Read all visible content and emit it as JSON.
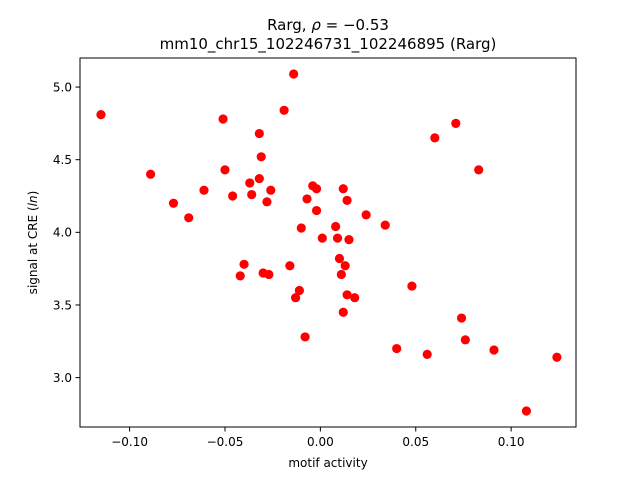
{
  "chart_data": {
    "type": "scatter",
    "title_line1_prefix": "Rarg, ",
    "title_line1_rho_symbol": "ρ",
    "title_line1_rho_value": " = −0.53",
    "title_line2": "mm10_chr15_102246731_102246895 (Rarg)",
    "xlabel": "motif activity",
    "ylabel_prefix": "signal at CRE (",
    "ylabel_italic": "ln",
    "ylabel_suffix": ")",
    "xlim": [
      -0.126,
      0.134
    ],
    "ylim": [
      2.66,
      5.2
    ],
    "x_ticks": [
      -0.1,
      -0.05,
      0.0,
      0.05,
      0.1
    ],
    "x_tick_labels": [
      "−0.10",
      "−0.05",
      "0.00",
      "0.05",
      "0.10"
    ],
    "y_ticks": [
      3.0,
      3.5,
      4.0,
      4.5,
      5.0
    ],
    "y_tick_labels": [
      "3.0",
      "3.5",
      "4.0",
      "4.5",
      "5.0"
    ],
    "marker_color": "#ff0000",
    "grid": false,
    "points": [
      {
        "x": -0.115,
        "y": 4.81
      },
      {
        "x": -0.089,
        "y": 4.4
      },
      {
        "x": -0.077,
        "y": 4.2
      },
      {
        "x": -0.069,
        "y": 4.1
      },
      {
        "x": -0.061,
        "y": 4.29
      },
      {
        "x": -0.051,
        "y": 4.78
      },
      {
        "x": -0.05,
        "y": 4.43
      },
      {
        "x": -0.046,
        "y": 4.25
      },
      {
        "x": -0.042,
        "y": 3.7
      },
      {
        "x": -0.04,
        "y": 3.78
      },
      {
        "x": -0.037,
        "y": 4.34
      },
      {
        "x": -0.036,
        "y": 4.26
      },
      {
        "x": -0.032,
        "y": 4.68
      },
      {
        "x": -0.032,
        "y": 4.37
      },
      {
        "x": -0.031,
        "y": 4.52
      },
      {
        "x": -0.03,
        "y": 3.72
      },
      {
        "x": -0.028,
        "y": 4.21
      },
      {
        "x": -0.027,
        "y": 3.71
      },
      {
        "x": -0.026,
        "y": 4.29
      },
      {
        "x": -0.019,
        "y": 4.84
      },
      {
        "x": -0.016,
        "y": 3.77
      },
      {
        "x": -0.014,
        "y": 5.09
      },
      {
        "x": -0.013,
        "y": 3.55
      },
      {
        "x": -0.011,
        "y": 3.6
      },
      {
        "x": -0.01,
        "y": 4.03
      },
      {
        "x": -0.008,
        "y": 3.28
      },
      {
        "x": -0.007,
        "y": 4.23
      },
      {
        "x": -0.004,
        "y": 4.32
      },
      {
        "x": -0.002,
        "y": 4.3
      },
      {
        "x": -0.002,
        "y": 4.15
      },
      {
        "x": 0.001,
        "y": 3.96
      },
      {
        "x": 0.008,
        "y": 4.04
      },
      {
        "x": 0.009,
        "y": 3.96
      },
      {
        "x": 0.01,
        "y": 3.82
      },
      {
        "x": 0.011,
        "y": 3.71
      },
      {
        "x": 0.012,
        "y": 4.3
      },
      {
        "x": 0.012,
        "y": 3.45
      },
      {
        "x": 0.013,
        "y": 3.77
      },
      {
        "x": 0.014,
        "y": 4.22
      },
      {
        "x": 0.014,
        "y": 3.57
      },
      {
        "x": 0.015,
        "y": 3.95
      },
      {
        "x": 0.018,
        "y": 3.55
      },
      {
        "x": 0.024,
        "y": 4.12
      },
      {
        "x": 0.034,
        "y": 4.05
      },
      {
        "x": 0.04,
        "y": 3.2
      },
      {
        "x": 0.048,
        "y": 3.63
      },
      {
        "x": 0.056,
        "y": 3.16
      },
      {
        "x": 0.06,
        "y": 4.65
      },
      {
        "x": 0.071,
        "y": 4.75
      },
      {
        "x": 0.074,
        "y": 3.41
      },
      {
        "x": 0.076,
        "y": 3.26
      },
      {
        "x": 0.083,
        "y": 4.43
      },
      {
        "x": 0.091,
        "y": 3.19
      },
      {
        "x": 0.108,
        "y": 2.77
      },
      {
        "x": 0.124,
        "y": 3.14
      }
    ]
  }
}
